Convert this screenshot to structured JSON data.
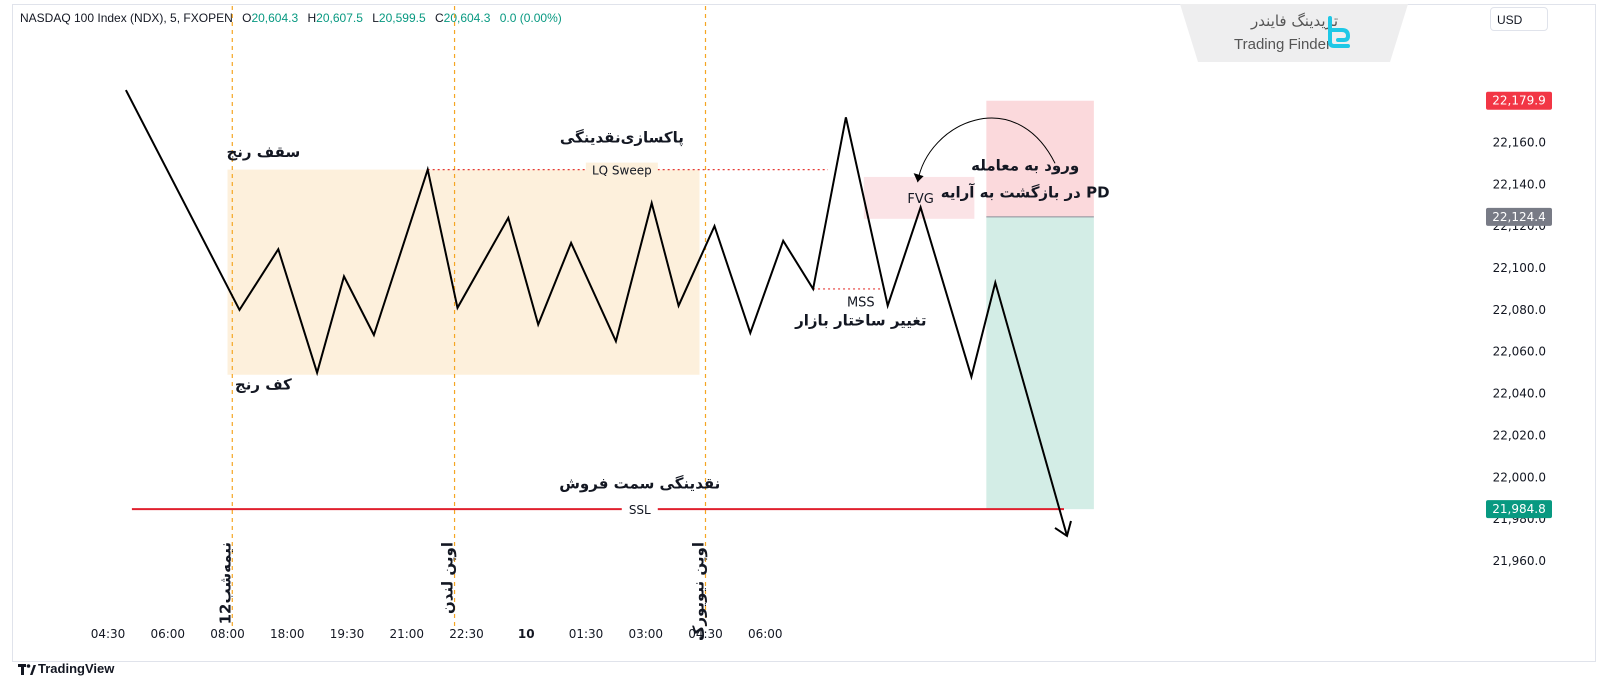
{
  "header": {
    "instrument": "NASDAQ 100 Index (NDX), 5, FXOPEN",
    "open_key": "O",
    "open_val": "20,604.3",
    "high_key": "H",
    "high_val": "20,607.5",
    "low_key": "L",
    "low_val": "20,599.5",
    "close_key": "C",
    "close_val": "20,604.3",
    "change": "0.0 (0.00%)"
  },
  "currency": "USD",
  "logo": {
    "fa": "تریدینگ فایندر",
    "en": "Trading Finder",
    "icon": "trading-finder-logo-icon"
  },
  "brand": {
    "name": "TradingView",
    "icon": "tradingview-logo-icon"
  },
  "colors": {
    "price_up": "#089981",
    "target_tag": "#f23645",
    "entry_tag": "#787b86",
    "stop_tag": "#089981",
    "range_zone": "#fdf0dc",
    "loss_zone": "#fbd9dc",
    "profit_zone": "#d3ede6",
    "fvg_zone": "#fbe3e6",
    "ssl_line": "#e0202e",
    "session_line": "#f5a623",
    "sweep_line": "#e53935"
  },
  "chart_data": {
    "type": "line",
    "x_ticks": [
      "04:30",
      "06:00",
      "08:00",
      "18:00",
      "19:30",
      "21:00",
      "22:30",
      "10",
      "01:30",
      "03:00",
      "04:30",
      "06:00"
    ],
    "y_ticks": [
      "21,960.0",
      "21,980.0",
      "22,000.0",
      "22,020.0",
      "22,040.0",
      "22,060.0",
      "22,080.0",
      "22,100.0",
      "22,120.0",
      "22,140.0",
      "22,160.0",
      "22,180.0"
    ],
    "ylim": [
      21950,
      22207
    ],
    "price_path": [
      [
        0.3,
        22185
      ],
      [
        2.2,
        22080
      ],
      [
        2.85,
        22109
      ],
      [
        3.5,
        22050
      ],
      [
        3.95,
        22096
      ],
      [
        4.45,
        22068
      ],
      [
        5.35,
        22147
      ],
      [
        5.85,
        22081
      ],
      [
        6.7,
        22124
      ],
      [
        7.2,
        22073
      ],
      [
        7.75,
        22112
      ],
      [
        8.5,
        22065
      ],
      [
        9.1,
        22131
      ],
      [
        9.55,
        22082
      ],
      [
        10.15,
        22120
      ],
      [
        10.75,
        22069
      ],
      [
        11.3,
        22113
      ],
      [
        11.8,
        22090
      ],
      [
        12.35,
        22172
      ],
      [
        13.05,
        22082
      ],
      [
        13.6,
        22129
      ],
      [
        14.45,
        22048
      ],
      [
        14.85,
        22093
      ],
      [
        16.05,
        21972
      ]
    ],
    "price_tags": [
      {
        "label": "22,179.9",
        "value": 22179.9,
        "role": "target"
      },
      {
        "label": "22,124.4",
        "value": 22124.4,
        "role": "entry"
      },
      {
        "label": "21,984.8",
        "value": 21984.8,
        "role": "stop"
      }
    ],
    "range_zone": {
      "x0": 2.0,
      "x1": 9.9,
      "y_top": 22147,
      "y_bottom": 22049
    },
    "position": {
      "x0": 14.7,
      "x1": 16.5,
      "target": 22179.9,
      "entry": 22124.4,
      "stop": 21984.8
    },
    "fvg_zone": {
      "x0": 12.65,
      "x1": 14.5,
      "y_top": 22143.5,
      "y_bottom": 22123.5
    },
    "sessions": [
      {
        "x": 2.08,
        "label": "12نیمه‌شب"
      },
      {
        "x": 5.8,
        "label": "اوپن لندن"
      },
      {
        "x": 10.0,
        "label": "اوپن نیویورک"
      }
    ],
    "sweep_line": {
      "x0": 5.35,
      "x1": 12.05,
      "y": 22147
    },
    "mss_line": {
      "x0": 11.8,
      "x1": 13.05,
      "y": 22090
    },
    "ssl_line": {
      "x0": 0.4,
      "x1": 16.0,
      "y": 21984.8
    },
    "annotations": {
      "range_top": "سقف رنج",
      "range_bottom": "کف رنج",
      "lq_sweep_fa": "پاکسازی‌نقدینگی",
      "lq_sweep": "LQ Sweep",
      "fvg": "FVG",
      "mss": "MSS",
      "mss_fa": "تغییر ساختار بازار",
      "entry_line1": "ورود  به معامله",
      "entry_line2": "در بازگشت به آرایه PD",
      "ssl_fa": "نقدینگی سمت فروش",
      "ssl": "SSL"
    }
  }
}
